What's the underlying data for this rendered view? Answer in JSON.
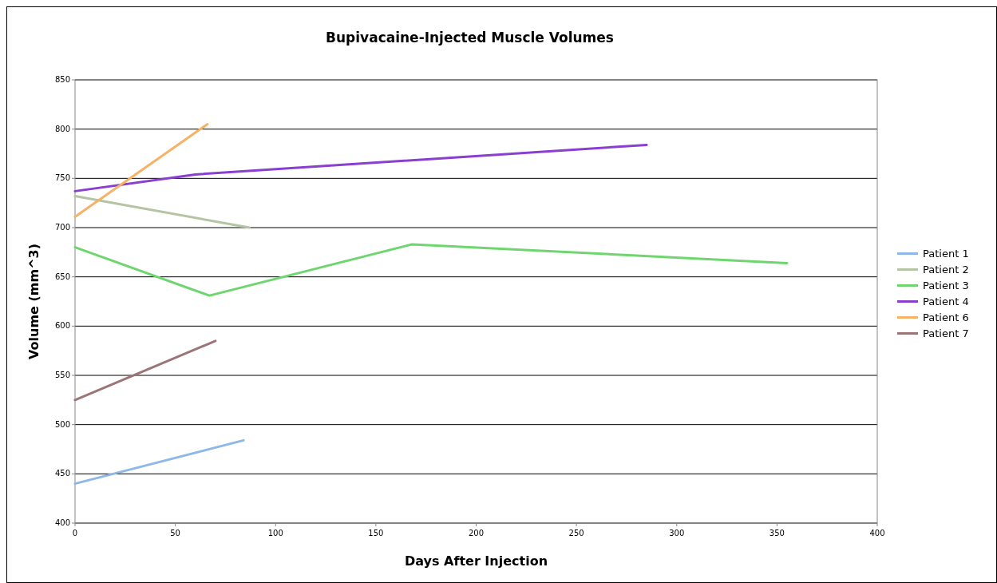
{
  "chart_data": {
    "type": "line",
    "title": "Bupivacaine-Injected Muscle Volumes",
    "xlabel": "Days After Injection",
    "ylabel": "Volume (mm^3)",
    "xlim": [
      0,
      400
    ],
    "xticks": [
      0,
      50,
      100,
      150,
      200,
      250,
      300,
      350,
      400
    ],
    "ylim": [
      400,
      850
    ],
    "yticks": [
      400,
      450,
      500,
      550,
      600,
      650,
      700,
      750,
      800,
      850
    ],
    "grid": "y",
    "legend": "right",
    "marker": "none",
    "line_style": "solid",
    "series": [
      {
        "name": "Patient 1",
        "color": "#8db8e8",
        "x": [
          0,
          84
        ],
        "values": [
          440,
          484
        ]
      },
      {
        "name": "Patient 2",
        "color": "#b5c4a3",
        "x": [
          0,
          87
        ],
        "values": [
          732,
          700
        ]
      },
      {
        "name": "Patient 3",
        "color": "#6fd66f",
        "x": [
          0,
          67,
          168,
          355
        ],
        "values": [
          680,
          631,
          683,
          664
        ]
      },
      {
        "name": "Patient 4",
        "color": "#8a3fd1",
        "x": [
          0,
          60,
          285
        ],
        "values": [
          737,
          754,
          784
        ]
      },
      {
        "name": "Patient 6",
        "color": "#f4b366",
        "x": [
          0,
          66
        ],
        "values": [
          711,
          805
        ]
      },
      {
        "name": "Patient 7",
        "color": "#9b7577",
        "x": [
          0,
          70
        ],
        "values": [
          525,
          585
        ]
      }
    ]
  }
}
